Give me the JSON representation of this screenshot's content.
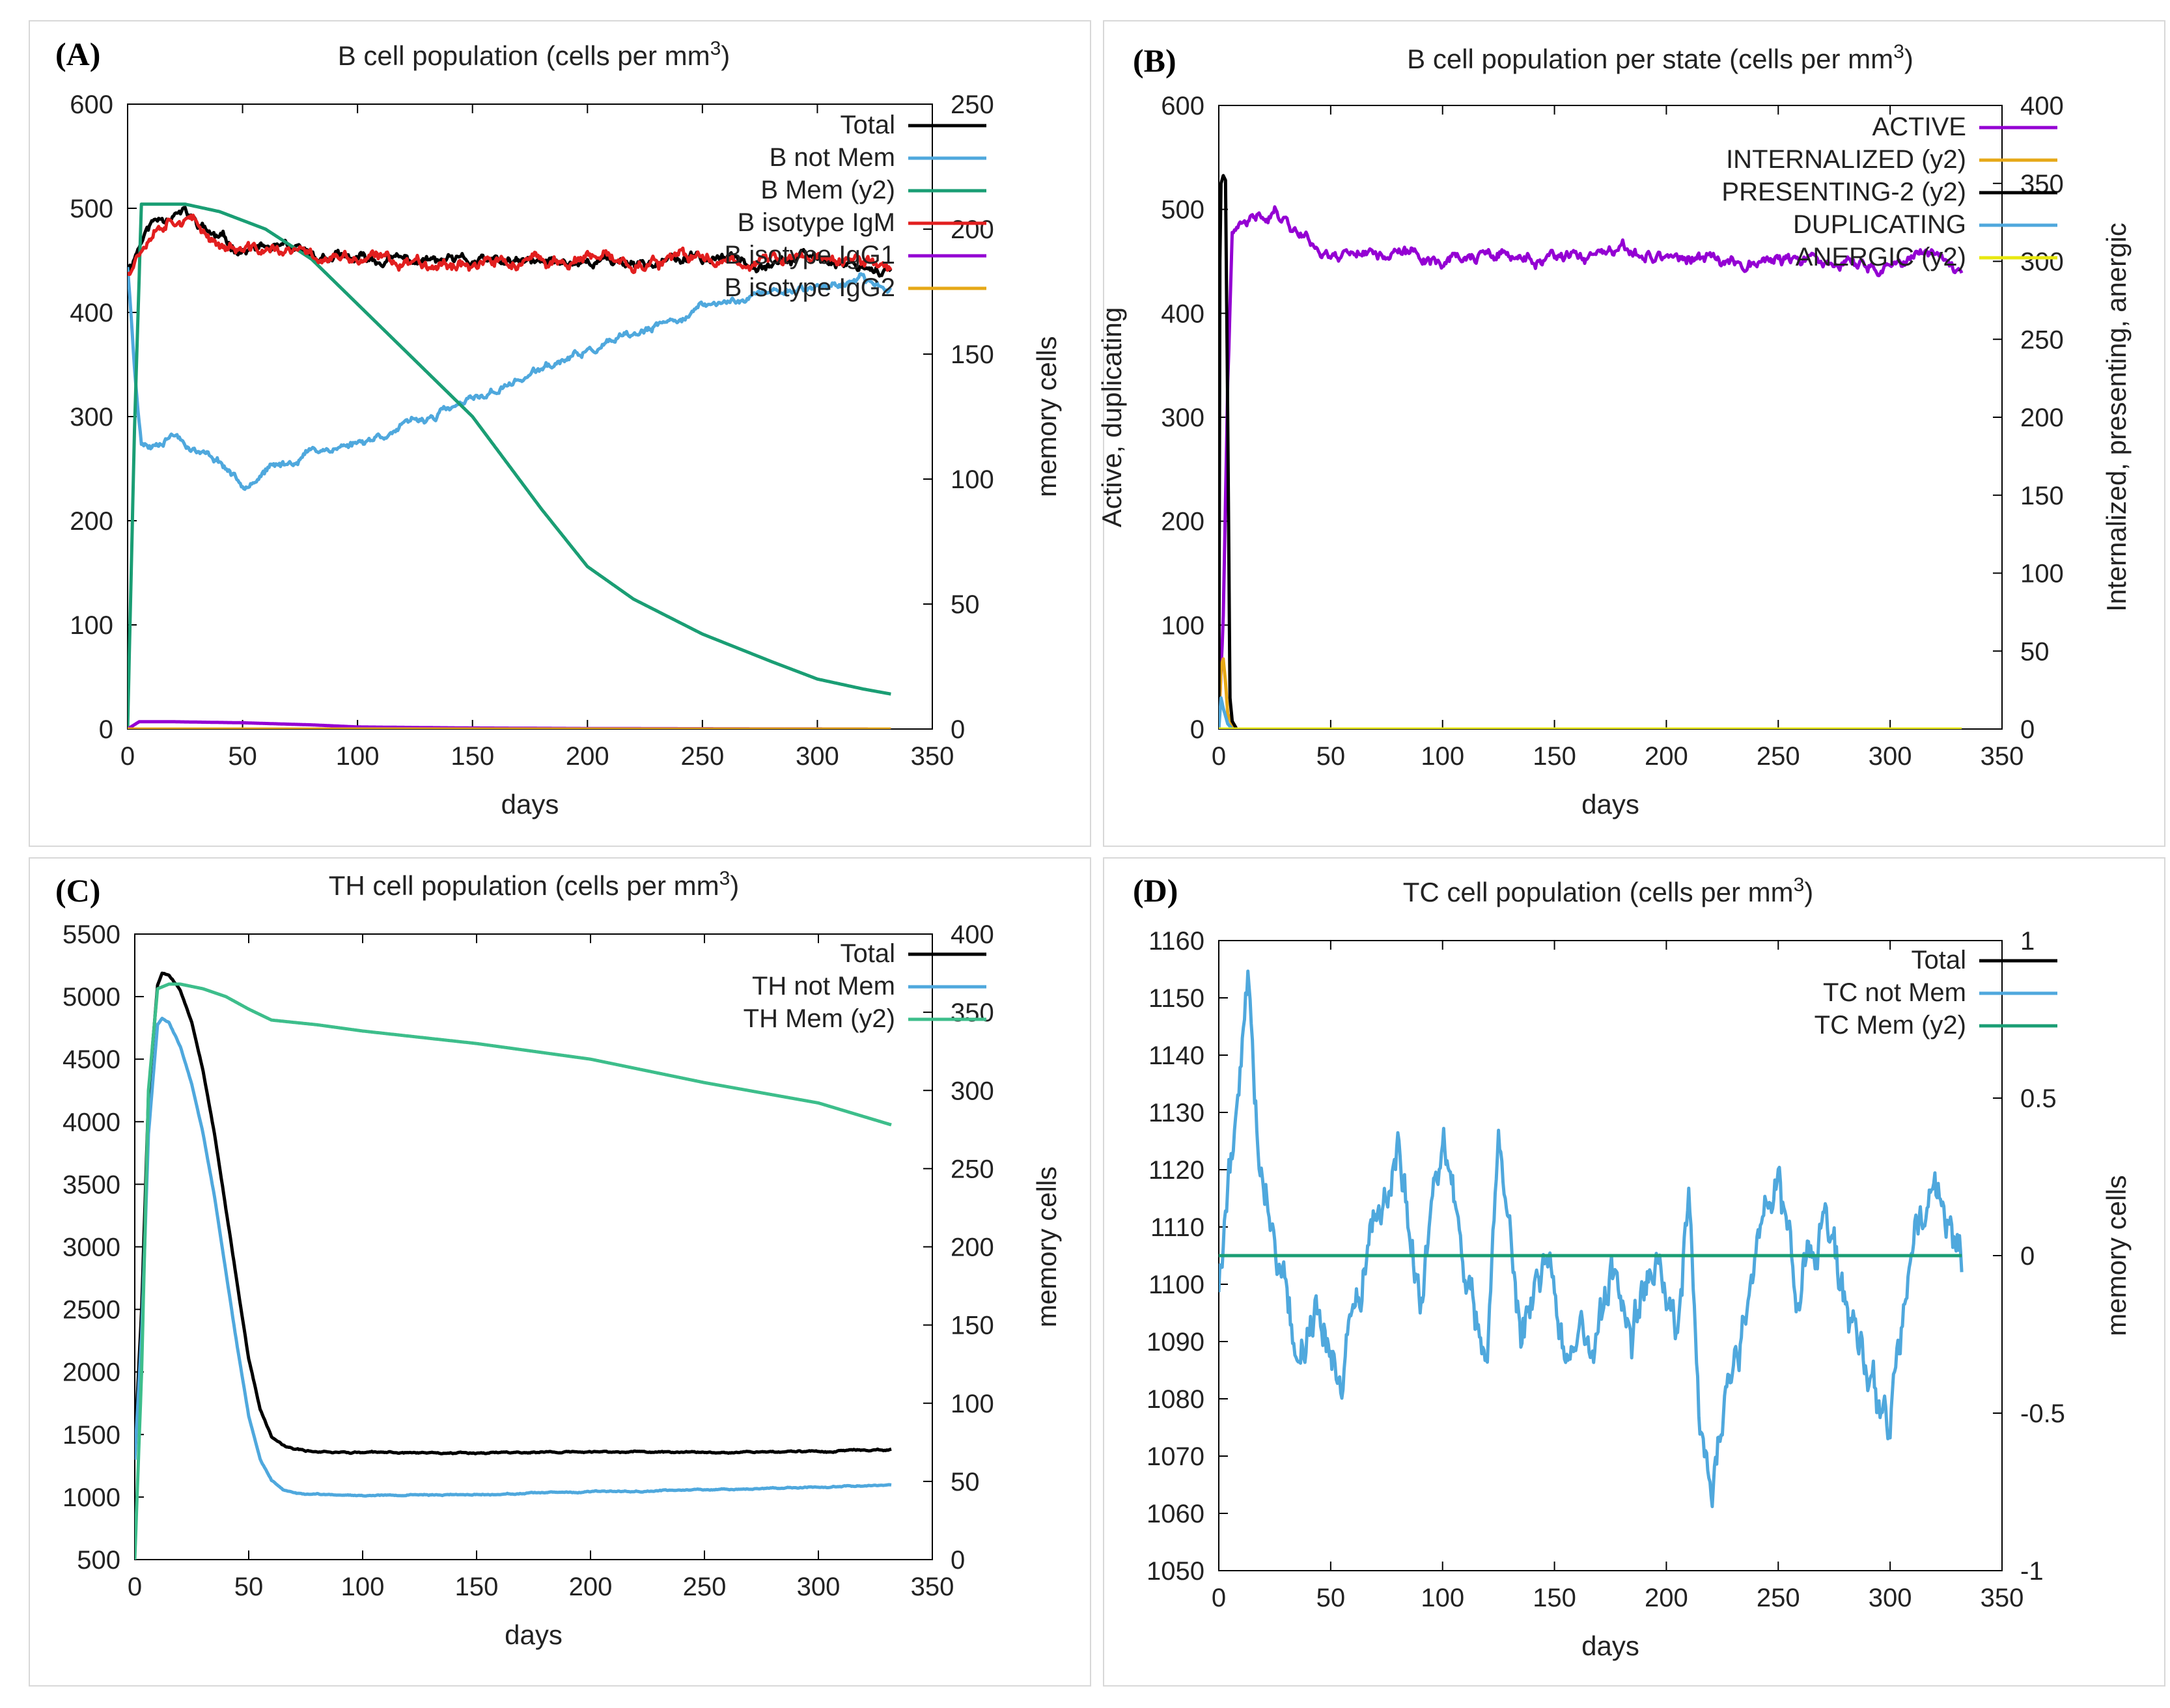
{
  "chart_data": [
    {
      "panel": "(A)",
      "type": "line",
      "title": "B cell population (cells per mm",
      "title_sup": "3",
      "title_end": ")",
      "xlabel": "days",
      "ylabel": "",
      "y2label": "memory cells",
      "xlim": [
        0,
        350
      ],
      "ylim": [
        0,
        600
      ],
      "y2lim": [
        0,
        250
      ],
      "xticks": [
        "0",
        "50",
        "100",
        "150",
        "200",
        "250",
        "300",
        "350"
      ],
      "yticks": [
        "0",
        "100",
        "200",
        "300",
        "400",
        "500",
        "600"
      ],
      "y2ticks": [
        "0",
        "50",
        "100",
        "150",
        "200",
        "250"
      ],
      "series": [
        {
          "name": "Total",
          "axis": "y",
          "color": "#000000",
          "noise": 7,
          "seed": 11,
          "x": [
            0,
            3,
            6,
            10,
            15,
            20,
            25,
            30,
            40,
            50,
            60,
            70,
            80,
            90,
            100,
            120,
            150,
            180,
            200,
            230,
            250,
            280,
            300,
            320,
            332
          ],
          "y": [
            440,
            455,
            470,
            485,
            492,
            498,
            495,
            485,
            470,
            460,
            462,
            458,
            455,
            452,
            450,
            450,
            448,
            447,
            450,
            448,
            452,
            450,
            452,
            446,
            440
          ]
        },
        {
          "name": "B not Mem",
          "axis": "y",
          "color": "#4FA8DD",
          "noise": 5,
          "seed": 23,
          "x": [
            0,
            3,
            6,
            10,
            20,
            30,
            40,
            50,
            60,
            70,
            80,
            90,
            100,
            120,
            150,
            180,
            200,
            230,
            250,
            280,
            300,
            320,
            332
          ],
          "y": [
            445,
            350,
            275,
            272,
            285,
            268,
            258,
            235,
            248,
            255,
            268,
            270,
            275,
            290,
            315,
            345,
            362,
            385,
            405,
            420,
            425,
            430,
            422
          ]
        },
        {
          "name": "B Mem (y2)",
          "axis": "y2",
          "color": "#1A9E74",
          "noise": 0,
          "seed": 0,
          "x": [
            0,
            3,
            6,
            15,
            25,
            40,
            60,
            80,
            100,
            120,
            150,
            180,
            200,
            220,
            250,
            280,
            300,
            320,
            332
          ],
          "y": [
            0,
            120,
            210,
            210,
            210,
            207,
            200,
            188,
            170,
            152,
            125,
            88,
            65,
            52,
            38,
            27,
            20,
            16,
            14
          ]
        },
        {
          "name": "B isotype IgM",
          "axis": "y",
          "color": "#E21F1F",
          "noise": 8,
          "seed": 37,
          "x": [
            0,
            3,
            6,
            10,
            15,
            20,
            25,
            30,
            40,
            50,
            60,
            70,
            80,
            90,
            100,
            120,
            150,
            180,
            200,
            230,
            250,
            280,
            300,
            320,
            332
          ],
          "y": [
            440,
            452,
            465,
            480,
            488,
            494,
            492,
            482,
            467,
            458,
            460,
            457,
            455,
            452,
            450,
            450,
            448,
            447,
            450,
            448,
            452,
            450,
            452,
            448,
            445
          ]
        },
        {
          "name": "B isotype IgG1",
          "axis": "y",
          "color": "#9400D3",
          "noise": 0,
          "seed": 0,
          "x": [
            0,
            5,
            20,
            50,
            80,
            100,
            150,
            200,
            250,
            300,
            332
          ],
          "y": [
            0,
            7,
            7,
            6,
            4,
            2,
            1,
            0.5,
            0.3,
            0.1,
            0
          ]
        },
        {
          "name": "B isotype IgG2",
          "axis": "y2",
          "color": "#E6A817",
          "noise": 0,
          "seed": 0,
          "x": [
            0,
            332
          ],
          "y": [
            0,
            0
          ]
        }
      ]
    },
    {
      "panel": "(B)",
      "type": "line",
      "title": "B cell population  per state (cells per mm",
      "title_sup": "3",
      "title_end": ")",
      "xlabel": "days",
      "ylabel": "Active, duplicating",
      "y2label": "Internalized, presenting, anergic",
      "xlim": [
        0,
        350
      ],
      "ylim": [
        0,
        600
      ],
      "y2lim": [
        0,
        400
      ],
      "xticks": [
        "0",
        "50",
        "100",
        "150",
        "200",
        "250",
        "300",
        "350"
      ],
      "yticks": [
        "0",
        "100",
        "200",
        "300",
        "400",
        "500",
        "600"
      ],
      "y2ticks": [
        "0",
        "50",
        "100",
        "150",
        "200",
        "250",
        "300",
        "350",
        "400"
      ],
      "series": [
        {
          "name": "ACTIVE",
          "axis": "y",
          "color": "#9400D3",
          "noise": 8,
          "seed": 41,
          "x": [
            0,
            2,
            4,
            6,
            10,
            15,
            20,
            25,
            30,
            40,
            50,
            60,
            80,
            100,
            120,
            150,
            180,
            200,
            220,
            250,
            280,
            300,
            320,
            332
          ],
          "y": [
            0,
            110,
            330,
            470,
            482,
            488,
            495,
            500,
            490,
            472,
            455,
            462,
            458,
            452,
            455,
            450,
            457,
            455,
            450,
            452,
            447,
            445,
            460,
            440
          ]
        },
        {
          "name": "INTERNALIZED (y2)",
          "axis": "y2",
          "color": "#E6A817",
          "noise": 0,
          "seed": 0,
          "x": [
            0,
            1,
            2,
            3,
            4,
            6,
            8,
            332
          ],
          "y": [
            0,
            40,
            45,
            30,
            10,
            2,
            0,
            0
          ]
        },
        {
          "name": "PRESENTING-2 (y2)",
          "axis": "y2",
          "color": "#000000",
          "noise": 0,
          "seed": 0,
          "x": [
            0,
            0.5,
            1,
            2,
            3,
            4,
            5,
            6,
            8,
            332
          ],
          "y": [
            0,
            300,
            350,
            355,
            352,
            200,
            20,
            5,
            0,
            0
          ]
        },
        {
          "name": "DUPLICATING",
          "axis": "y",
          "color": "#4FA8DD",
          "noise": 0,
          "seed": 0,
          "x": [
            0,
            1,
            2,
            4,
            6,
            332
          ],
          "y": [
            0,
            30,
            20,
            5,
            0,
            0
          ]
        },
        {
          "name": "ANERGIC (y2)",
          "axis": "y2",
          "color": "#E8E810",
          "noise": 0,
          "seed": 0,
          "x": [
            0,
            332
          ],
          "y": [
            0,
            0
          ]
        }
      ]
    },
    {
      "panel": "(C)",
      "type": "line",
      "title": "TH cell population (cells per mm",
      "title_sup": "3",
      "title_end": ")",
      "xlabel": "days",
      "ylabel": "",
      "y2label": "memory cells",
      "xlim": [
        0,
        350
      ],
      "ylim": [
        500,
        5500
      ],
      "y2lim": [
        0,
        400
      ],
      "xticks": [
        "0",
        "50",
        "100",
        "150",
        "200",
        "250",
        "300",
        "350"
      ],
      "yticks": [
        "500",
        "1000",
        "1500",
        "2000",
        "2500",
        "3000",
        "3500",
        "4000",
        "4500",
        "5000",
        "5500"
      ],
      "y2ticks": [
        "0",
        "50",
        "100",
        "150",
        "200",
        "250",
        "300",
        "350",
        "400"
      ],
      "series": [
        {
          "name": "Total",
          "axis": "y",
          "color": "#000000",
          "noise": 8,
          "seed": 53,
          "x": [
            0,
            3,
            6,
            10,
            12,
            15,
            20,
            25,
            30,
            35,
            40,
            45,
            50,
            55,
            60,
            65,
            70,
            75,
            80,
            100,
            150,
            200,
            250,
            300,
            332
          ],
          "y": [
            1400,
            2500,
            4200,
            5100,
            5200,
            5180,
            5050,
            4800,
            4400,
            3900,
            3300,
            2700,
            2100,
            1700,
            1480,
            1410,
            1380,
            1370,
            1365,
            1355,
            1355,
            1360,
            1360,
            1365,
            1380
          ]
        },
        {
          "name": "TH not Mem",
          "axis": "y",
          "color": "#4FA8DD",
          "noise": 6,
          "seed": 67,
          "x": [
            0,
            3,
            6,
            10,
            12,
            15,
            20,
            25,
            30,
            35,
            40,
            45,
            50,
            55,
            60,
            65,
            70,
            75,
            80,
            100,
            150,
            200,
            250,
            300,
            332
          ],
          "y": [
            1300,
            2300,
            3900,
            4780,
            4830,
            4800,
            4600,
            4300,
            3900,
            3400,
            2800,
            2200,
            1650,
            1300,
            1130,
            1060,
            1030,
            1025,
            1020,
            1015,
            1020,
            1040,
            1060,
            1080,
            1100
          ]
        },
        {
          "name": "TH Mem (y2)",
          "axis": "y2",
          "color": "#3DBE8B",
          "noise": 0,
          "seed": 0,
          "x": [
            0,
            3,
            6,
            10,
            15,
            20,
            30,
            40,
            50,
            60,
            80,
            100,
            150,
            200,
            250,
            300,
            332
          ],
          "y": [
            0,
            120,
            300,
            365,
            368,
            368,
            365,
            360,
            352,
            345,
            342,
            338,
            330,
            320,
            305,
            292,
            278
          ]
        }
      ]
    },
    {
      "panel": "(D)",
      "type": "line",
      "title": "TC cell population (cells per mm",
      "title_sup": "3",
      "title_end": ")",
      "xlabel": "days",
      "ylabel": "",
      "y2label": "memory cells",
      "xlim": [
        0,
        350
      ],
      "ylim": [
        1050,
        1160
      ],
      "y2lim": [
        -1,
        1
      ],
      "xticks": [
        "0",
        "50",
        "100",
        "150",
        "200",
        "250",
        "300",
        "350"
      ],
      "yticks": [
        "1050",
        "1060",
        "1070",
        "1080",
        "1090",
        "1100",
        "1110",
        "1120",
        "1130",
        "1140",
        "1150",
        "1160"
      ],
      "y2ticks": [
        "-1",
        "-0.5",
        "0",
        "0.5",
        "1"
      ],
      "series": [
        {
          "name": "Total",
          "axis": "y",
          "color": "#000000",
          "noise": 0,
          "seed": 0,
          "x": [
            0,
            332
          ],
          "y": [
            1105,
            1105
          ]
        },
        {
          "name": "TC not Mem",
          "axis": "y",
          "color": "#4FA8DD",
          "noise": 6,
          "seed": 79,
          "x": [
            0,
            5,
            10,
            13,
            18,
            25,
            35,
            45,
            55,
            65,
            75,
            80,
            90,
            100,
            110,
            120,
            125,
            135,
            145,
            155,
            165,
            175,
            185,
            195,
            205,
            210,
            215,
            220,
            230,
            240,
            250,
            260,
            270,
            280,
            290,
            300,
            310,
            320,
            332
          ],
          "y": [
            1100,
            1120,
            1140,
            1152,
            1125,
            1110,
            1090,
            1095,
            1085,
            1100,
            1115,
            1125,
            1095,
            1130,
            1100,
            1085,
            1130,
            1090,
            1105,
            1090,
            1085,
            1100,
            1090,
            1105,
            1095,
            1115,
            1075,
            1065,
            1085,
            1105,
            1120,
            1095,
            1110,
            1100,
            1080,
            1075,
            1105,
            1115,
            1100
          ]
        },
        {
          "name": "TC Mem (y2)",
          "axis": "y2",
          "color": "#1A9E74",
          "noise": 0,
          "seed": 0,
          "x": [
            0,
            332
          ],
          "y": [
            0,
            0
          ]
        }
      ]
    }
  ]
}
